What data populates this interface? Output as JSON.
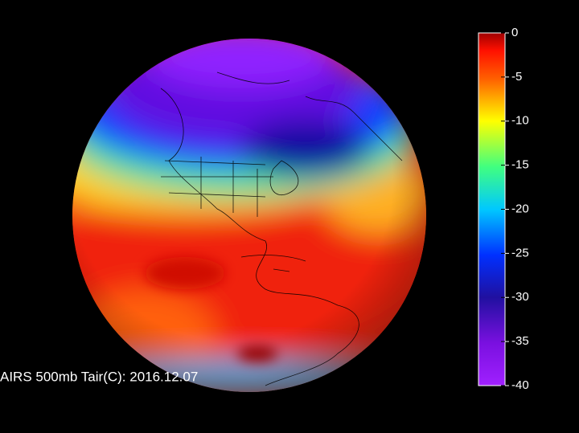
{
  "caption": "AIRS 500mb Tair(C): 2016.12.07",
  "colorbar": {
    "lim": [
      -40,
      0
    ],
    "ticks": [
      0,
      -5,
      -10,
      -15,
      -20,
      -25,
      -30,
      -35,
      -40
    ]
  }
}
